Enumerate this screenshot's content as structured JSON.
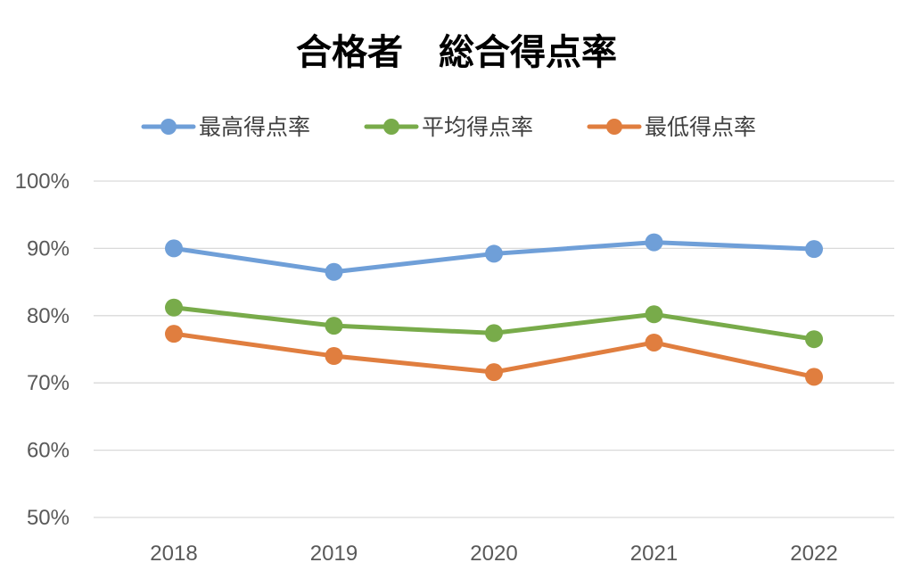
{
  "chart_data": {
    "type": "line",
    "title": "合格者　総合得点率",
    "xlabel": "",
    "ylabel": "",
    "categories": [
      "2018",
      "2019",
      "2020",
      "2021",
      "2022"
    ],
    "ylim": [
      50,
      100
    ],
    "yticks": [
      50,
      60,
      70,
      80,
      90,
      100
    ],
    "ytick_labels": [
      "50%",
      "60%",
      "70%",
      "80%",
      "90%",
      "100%"
    ],
    "grid": true,
    "legend_position": "top",
    "series": [
      {
        "name": "最高得点率",
        "color": "#6f9fd8",
        "values": [
          90.0,
          86.5,
          89.2,
          90.9,
          89.9
        ]
      },
      {
        "name": "平均得点率",
        "color": "#78ab4a",
        "values": [
          81.2,
          78.5,
          77.4,
          80.2,
          76.5
        ]
      },
      {
        "name": "最低得点率",
        "color": "#e07e3f",
        "values": [
          77.3,
          74.0,
          71.6,
          76.0,
          70.9
        ]
      }
    ]
  }
}
